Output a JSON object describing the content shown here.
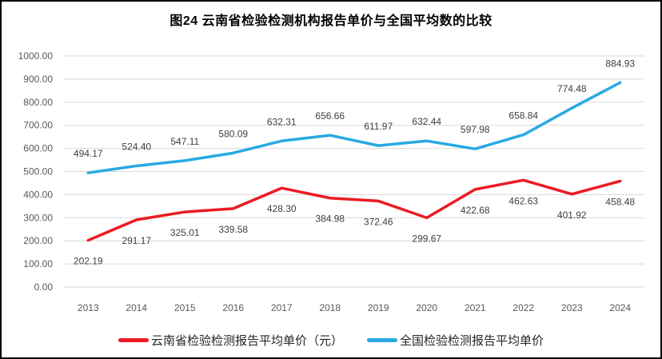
{
  "title": "图24 云南省检验检测机构报告单价与全国平均数的比较",
  "chart_data": {
    "type": "line",
    "title": "图24 云南省检验检测机构报告单价与全国平均数的比较",
    "categories": [
      "2013",
      "2014",
      "2015",
      "2016",
      "2017",
      "2018",
      "2019",
      "2020",
      "2021",
      "2022",
      "2023",
      "2024"
    ],
    "series": [
      {
        "name": "云南省检验检测报告平均单价（元）",
        "color": "#EC1B23",
        "label_position": "below",
        "values": [
          202.19,
          291.17,
          325.01,
          339.58,
          428.3,
          384.98,
          372.46,
          299.67,
          422.68,
          462.63,
          401.92,
          458.48
        ]
      },
      {
        "name": "全国检验检测报告平均单价",
        "color": "#29A9E1",
        "label_position": "above",
        "values": [
          494.17,
          524.4,
          547.11,
          580.09,
          632.31,
          656.66,
          611.97,
          632.44,
          597.98,
          658.84,
          774.48,
          884.93
        ]
      }
    ],
    "ylim": [
      0,
      1000
    ],
    "y_ticks": [
      "0.00",
      "100.00",
      "200.00",
      "300.00",
      "400.00",
      "500.00",
      "600.00",
      "700.00",
      "800.00",
      "900.00",
      "1000.00"
    ],
    "label_decimals": 2,
    "grid": true,
    "gridline_color": "#D9D9D9",
    "legend_position": "bottom"
  }
}
